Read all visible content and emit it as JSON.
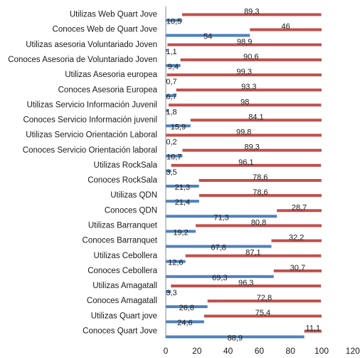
{
  "chart_data": {
    "type": "bar",
    "orientation": "horizontal",
    "stacked": false,
    "categories": [
      "Conoces Quart Jove",
      "Utilizas Quart jove",
      "Conoces Amagatall",
      "Utilizas Amagatall",
      "Conoces Cebollera",
      "Utilizas Cebollera",
      "Conoces Barranquet",
      "Utilizas Barranquet",
      "Conoces QDN",
      "Utilizas QDN",
      "Conoces RockSala",
      "Utilizas RockSala",
      "Conoces Servicio Orientación laboral",
      "Utilizas Servicio Orientación Laboral",
      "Conoces Servicio Información juvenil",
      "Utilizas Servicio Información Juvenil",
      "Conoces Asesoria Europea",
      "Utilizas Asesoria europea",
      "Conoces Asesoria de Voluntariado Joven",
      "Utilizas asesoria Voluntariado Joven",
      "Conoces Web de Quart Jove",
      "Utilizas Web Quart Jove"
    ],
    "series": [
      {
        "color": "#4f81bd",
        "values": [
          88.9,
          24.6,
          26.8,
          3.3,
          69.3,
          12.6,
          67.8,
          19.2,
          71.3,
          21.4,
          21.3,
          3.5,
          10.7,
          0.2,
          15.9,
          1.8,
          6.7,
          0.7,
          9.4,
          1.1,
          54,
          10.5
        ],
        "labels": [
          "88,9",
          "24,6",
          "26,8",
          "3,3",
          "69,3",
          "12,6",
          "67,8",
          "19,2",
          "71,3",
          "21,4",
          "21,3",
          "3,5",
          "10,7",
          "0,2",
          "15,9",
          "1,8",
          "6,7",
          "0,7",
          "9,4",
          "1,1",
          "54",
          "10,5"
        ]
      },
      {
        "color": "#c0504d",
        "values": [
          11.1,
          75.4,
          72.8,
          96.3,
          30.7,
          87.1,
          32.2,
          80.8,
          28.7,
          78.6,
          78.6,
          96.1,
          89.3,
          99.8,
          84.1,
          98,
          93.3,
          99.3,
          90.6,
          98.9,
          46,
          89.3
        ],
        "labels": [
          "11,1",
          "75,4",
          "72,8",
          "96,3",
          "30,7",
          "87,1",
          "32,2",
          "80,8",
          "28,7",
          "78,6",
          "78,6",
          "96,1",
          "89,3",
          "99,8",
          "84,1",
          "98",
          "93,3",
          "99,3",
          "90,6",
          "98,9",
          "46",
          "89,3"
        ]
      }
    ],
    "xlim": [
      0,
      120
    ],
    "xticks": [
      "0",
      "20",
      "40",
      "60",
      "80",
      "100",
      "120"
    ],
    "grid": false,
    "legend": "none"
  }
}
